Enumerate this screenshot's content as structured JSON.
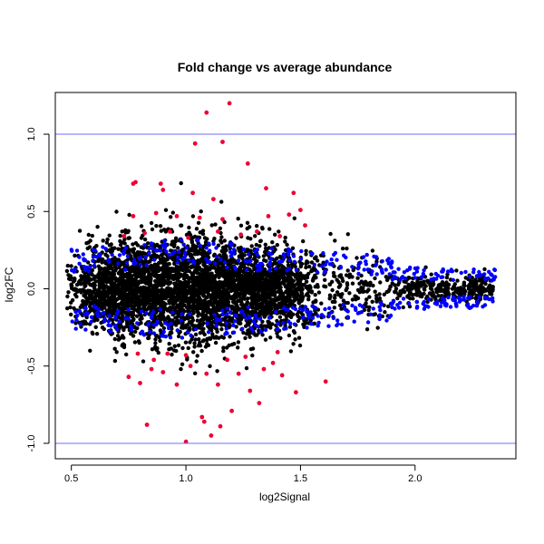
{
  "chart_data": {
    "type": "scatter",
    "title": "Fold change vs average abundance",
    "xlabel": "log2Signal",
    "ylabel": "log2FC",
    "xlim": [
      0.43,
      2.44
    ],
    "ylim": [
      -1.1,
      1.27
    ],
    "x_ticks": [
      0.5,
      1.0,
      1.5,
      2.0
    ],
    "x_tick_labels": [
      "0.5",
      "1.0",
      "1.5",
      "2.0"
    ],
    "y_ticks": [
      -1.0,
      -0.5,
      0.0,
      0.5,
      1.0
    ],
    "y_tick_labels": [
      "-1.0",
      "-0.5",
      "0.0",
      "0.5",
      "1.0"
    ],
    "reference_lines": [
      -1.0,
      1.0
    ],
    "colors": {
      "not_significant": "#000000",
      "moderate": "#0000ff",
      "significant": "#ee0033",
      "reference_line": "#6f6fff"
    },
    "highlighted_points": {
      "significant": [
        [
          1.09,
          1.14
        ],
        [
          1.19,
          1.2
        ],
        [
          1.04,
          0.94
        ],
        [
          1.16,
          0.95
        ],
        [
          1.27,
          0.81
        ],
        [
          0.78,
          0.69
        ],
        [
          0.77,
          0.68
        ],
        [
          0.89,
          0.68
        ],
        [
          0.9,
          0.64
        ],
        [
          1.03,
          0.62
        ],
        [
          1.12,
          0.58
        ],
        [
          1.35,
          0.65
        ],
        [
          1.47,
          0.62
        ],
        [
          0.77,
          0.47
        ],
        [
          0.87,
          0.49
        ],
        [
          0.96,
          0.47
        ],
        [
          1.06,
          0.46
        ],
        [
          1.16,
          0.45
        ],
        [
          1.36,
          0.47
        ],
        [
          1.45,
          0.48
        ],
        [
          1.5,
          0.51
        ],
        [
          0.73,
          0.34
        ],
        [
          0.82,
          0.36
        ],
        [
          0.93,
          0.37
        ],
        [
          1.01,
          0.33
        ],
        [
          1.14,
          0.37
        ],
        [
          1.24,
          0.35
        ],
        [
          1.31,
          0.37
        ],
        [
          1.41,
          0.34
        ],
        [
          1.52,
          0.41
        ],
        [
          0.75,
          -0.57
        ],
        [
          0.8,
          -0.61
        ],
        [
          0.83,
          -0.88
        ],
        [
          0.9,
          -0.54
        ],
        [
          0.96,
          -0.62
        ],
        [
          1.0,
          -0.99
        ],
        [
          1.07,
          -0.83
        ],
        [
          1.08,
          -0.86
        ],
        [
          1.11,
          -0.95
        ],
        [
          1.15,
          -0.89
        ],
        [
          1.2,
          -0.79
        ],
        [
          1.23,
          -0.55
        ],
        [
          1.28,
          -0.66
        ],
        [
          1.32,
          -0.74
        ],
        [
          1.38,
          -0.48
        ],
        [
          1.42,
          -0.56
        ],
        [
          1.48,
          -0.67
        ],
        [
          1.61,
          -0.6
        ],
        [
          0.86,
          -0.46
        ],
        [
          1.09,
          -0.55
        ],
        [
          0.92,
          -0.42
        ],
        [
          1.02,
          -0.5
        ],
        [
          1.14,
          -0.62
        ],
        [
          1.26,
          -0.44
        ],
        [
          1.4,
          -0.41
        ],
        [
          0.79,
          -0.42
        ],
        [
          0.85,
          -0.52
        ],
        [
          1.0,
          -0.43
        ],
        [
          1.18,
          -0.46
        ],
        [
          1.34,
          -0.52
        ]
      ]
    }
  }
}
